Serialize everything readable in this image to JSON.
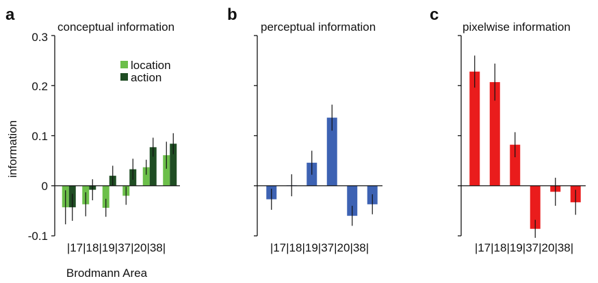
{
  "chart_data": [
    {
      "type": "bar",
      "panel_letter": "a",
      "title": "conceptual information",
      "xlabel": "Brodmann Area",
      "ylabel": "information",
      "ylim": [
        -0.1,
        0.3
      ],
      "yticks": [
        "0.3",
        "0.2",
        "0.1",
        "0",
        "-0.1"
      ],
      "category_label": "|17|18|19|37|20|38|",
      "categories": [
        "17",
        "18",
        "19",
        "37",
        "20",
        "38"
      ],
      "legend": [
        "location",
        "action"
      ],
      "series": [
        {
          "name": "location",
          "color": "#6cbf4a",
          "values": [
            -0.043,
            -0.037,
            -0.044,
            -0.02,
            0.037,
            0.061
          ],
          "errors": [
            0.034,
            0.024,
            0.018,
            0.018,
            0.015,
            0.027
          ]
        },
        {
          "name": "action",
          "color": "#1f4d23",
          "values": [
            -0.043,
            -0.008,
            0.02,
            0.033,
            0.077,
            0.084
          ],
          "errors": [
            0.027,
            0.021,
            0.02,
            0.021,
            0.019,
            0.021
          ]
        }
      ]
    },
    {
      "type": "bar",
      "panel_letter": "b",
      "title": "perceptual information",
      "ylim": [
        -0.1,
        0.3
      ],
      "category_label": "|17|18|19|37|20|38|",
      "categories": [
        "17",
        "18",
        "19",
        "37",
        "20",
        "38"
      ],
      "series": [
        {
          "color": "#3d62b3",
          "values": [
            -0.027,
            0.001,
            0.046,
            0.136,
            -0.06,
            -0.037
          ],
          "errors": [
            0.021,
            0.022,
            0.024,
            0.026,
            0.02,
            0.02
          ]
        }
      ]
    },
    {
      "type": "bar",
      "panel_letter": "c",
      "title": "pixelwise information",
      "ylim": [
        -0.1,
        0.3
      ],
      "category_label": "|17|18|19|37|20|38|",
      "categories": [
        "17",
        "18",
        "19",
        "37",
        "20",
        "38"
      ],
      "series": [
        {
          "color": "#ea1c1c",
          "values": [
            0.228,
            0.207,
            0.082,
            -0.086,
            -0.012,
            -0.033
          ],
          "errors": [
            0.032,
            0.037,
            0.025,
            0.018,
            0.028,
            0.025
          ]
        }
      ]
    }
  ]
}
